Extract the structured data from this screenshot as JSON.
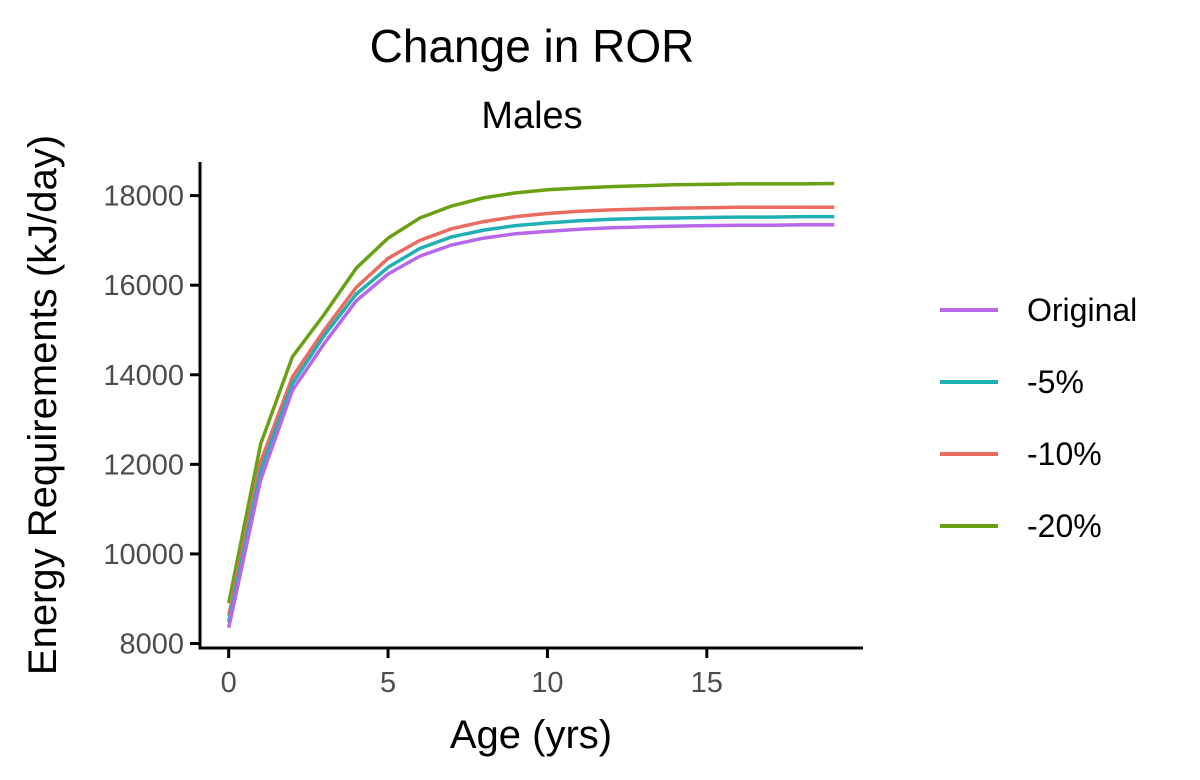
{
  "chart_data": {
    "type": "line",
    "title": "Change in ROR",
    "subtitle": "Males",
    "xlabel": "Age (yrs)",
    "ylabel": "Energy Requirements (kJ/day)",
    "xlim": [
      -0.9,
      19.9
    ],
    "ylim": [
      7900,
      18750
    ],
    "x_ticks": [
      0,
      5,
      10,
      15
    ],
    "y_ticks": [
      8000,
      10000,
      12000,
      14000,
      16000,
      18000
    ],
    "grid": false,
    "legend_position": "right",
    "x": [
      0,
      1,
      2,
      3,
      4,
      5,
      6,
      7,
      8,
      9,
      10,
      11,
      12,
      13,
      14,
      15,
      16,
      17,
      18,
      19
    ],
    "series": [
      {
        "name": "Original",
        "color": "#b767e9",
        "values": [
          8350,
          11650,
          13650,
          14700,
          15650,
          16250,
          16650,
          16900,
          17050,
          17150,
          17200,
          17250,
          17280,
          17300,
          17320,
          17330,
          17340,
          17340,
          17350,
          17350
        ]
      },
      {
        "name": "-5%",
        "color": "#1fb0b4",
        "values": [
          8480,
          11850,
          13800,
          14880,
          15800,
          16400,
          16820,
          17080,
          17230,
          17330,
          17390,
          17440,
          17470,
          17490,
          17500,
          17510,
          17520,
          17520,
          17530,
          17530
        ]
      },
      {
        "name": "-10%",
        "color": "#ec6b61",
        "values": [
          8620,
          12050,
          13950,
          15000,
          15950,
          16600,
          17000,
          17260,
          17420,
          17530,
          17600,
          17650,
          17680,
          17700,
          17720,
          17730,
          17740,
          17740,
          17740,
          17740
        ]
      },
      {
        "name": "-20%",
        "color": "#6aa114",
        "values": [
          8900,
          12450,
          14400,
          15350,
          16380,
          17050,
          17500,
          17770,
          17950,
          18060,
          18130,
          18170,
          18200,
          18220,
          18240,
          18250,
          18260,
          18260,
          18260,
          18270
        ]
      }
    ]
  }
}
